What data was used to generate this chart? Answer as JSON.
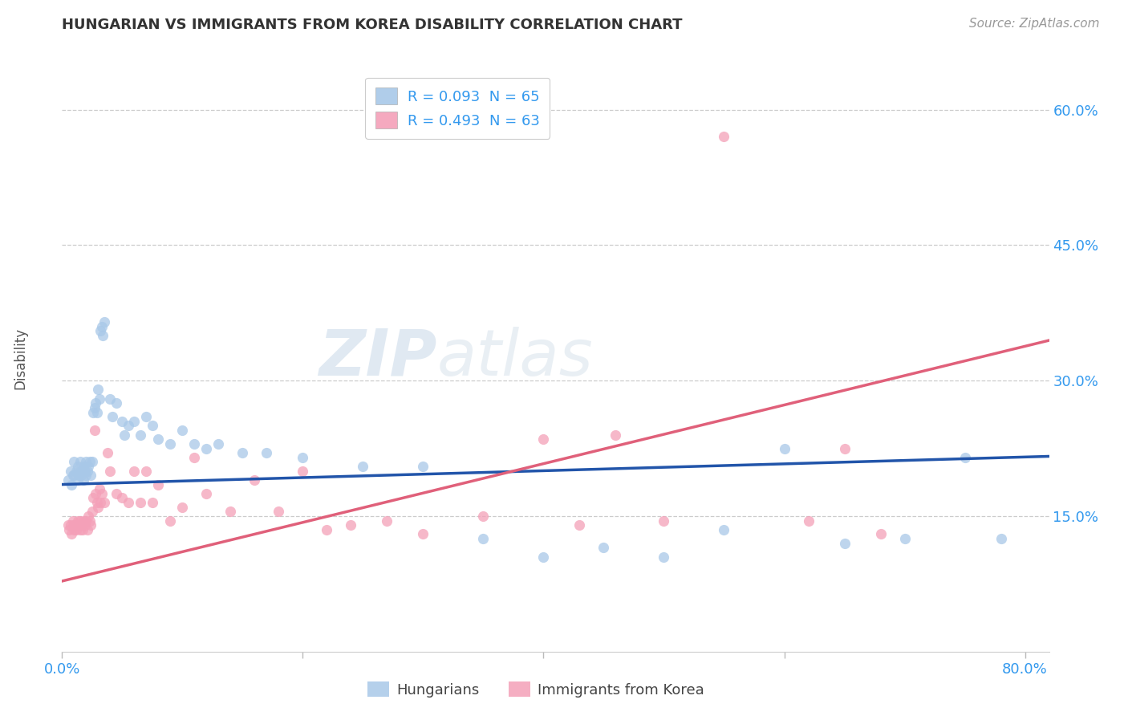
{
  "title": "HUNGARIAN VS IMMIGRANTS FROM KOREA DISABILITY CORRELATION CHART",
  "source": "Source: ZipAtlas.com",
  "ylabel": "Disability",
  "xlim": [
    0.0,
    0.82
  ],
  "ylim": [
    0.0,
    0.65
  ],
  "ytick_vals": [
    0.15,
    0.3,
    0.45,
    0.6
  ],
  "ytick_labels": [
    "15.0%",
    "30.0%",
    "45.0%",
    "60.0%"
  ],
  "xtick_vals": [
    0.0,
    0.2,
    0.4,
    0.6,
    0.8
  ],
  "xtick_labels": [
    "0.0%",
    "",
    "",
    "",
    "80.0%"
  ],
  "legend1_label": "R = 0.093  N = 65",
  "legend2_label": "R = 0.493  N = 63",
  "legend_bottom_label1": "Hungarians",
  "legend_bottom_label2": "Immigrants from Korea",
  "blue_color": "#a8c8e8",
  "pink_color": "#f4a0b8",
  "blue_line_color": "#2255aa",
  "pink_line_color": "#e0607a",
  "watermark_zip": "ZIP",
  "watermark_atlas": "atlas",
  "blue_intercept": 0.185,
  "blue_slope": 0.038,
  "pink_intercept": 0.078,
  "pink_slope": 0.325,
  "blue_x": [
    0.005,
    0.007,
    0.008,
    0.009,
    0.01,
    0.01,
    0.012,
    0.013,
    0.013,
    0.014,
    0.015,
    0.015,
    0.016,
    0.017,
    0.018,
    0.018,
    0.019,
    0.02,
    0.02,
    0.021,
    0.022,
    0.023,
    0.024,
    0.025,
    0.026,
    0.027,
    0.028,
    0.029,
    0.03,
    0.031,
    0.032,
    0.033,
    0.034,
    0.035,
    0.04,
    0.042,
    0.045,
    0.05,
    0.052,
    0.055,
    0.06,
    0.065,
    0.07,
    0.075,
    0.08,
    0.09,
    0.1,
    0.11,
    0.12,
    0.13,
    0.15,
    0.17,
    0.2,
    0.25,
    0.3,
    0.35,
    0.4,
    0.45,
    0.5,
    0.55,
    0.6,
    0.65,
    0.7,
    0.75,
    0.78
  ],
  "blue_y": [
    0.19,
    0.2,
    0.185,
    0.195,
    0.21,
    0.195,
    0.2,
    0.19,
    0.205,
    0.195,
    0.2,
    0.21,
    0.195,
    0.2,
    0.205,
    0.19,
    0.2,
    0.195,
    0.21,
    0.2,
    0.205,
    0.21,
    0.195,
    0.21,
    0.265,
    0.27,
    0.275,
    0.265,
    0.29,
    0.28,
    0.355,
    0.36,
    0.35,
    0.365,
    0.28,
    0.26,
    0.275,
    0.255,
    0.24,
    0.25,
    0.255,
    0.24,
    0.26,
    0.25,
    0.235,
    0.23,
    0.245,
    0.23,
    0.225,
    0.23,
    0.22,
    0.22,
    0.215,
    0.205,
    0.205,
    0.125,
    0.105,
    0.115,
    0.105,
    0.135,
    0.225,
    0.12,
    0.125,
    0.215,
    0.125
  ],
  "pink_x": [
    0.005,
    0.006,
    0.007,
    0.008,
    0.009,
    0.01,
    0.01,
    0.011,
    0.012,
    0.013,
    0.014,
    0.015,
    0.015,
    0.016,
    0.017,
    0.018,
    0.019,
    0.02,
    0.021,
    0.022,
    0.023,
    0.024,
    0.025,
    0.026,
    0.027,
    0.028,
    0.029,
    0.03,
    0.031,
    0.032,
    0.033,
    0.035,
    0.038,
    0.04,
    0.045,
    0.05,
    0.055,
    0.06,
    0.065,
    0.07,
    0.075,
    0.08,
    0.09,
    0.1,
    0.11,
    0.12,
    0.14,
    0.16,
    0.18,
    0.2,
    0.22,
    0.24,
    0.27,
    0.3,
    0.35,
    0.4,
    0.43,
    0.46,
    0.5,
    0.55,
    0.62,
    0.65,
    0.68
  ],
  "pink_y": [
    0.14,
    0.135,
    0.14,
    0.13,
    0.145,
    0.14,
    0.135,
    0.14,
    0.135,
    0.145,
    0.14,
    0.135,
    0.145,
    0.14,
    0.135,
    0.145,
    0.14,
    0.145,
    0.135,
    0.15,
    0.145,
    0.14,
    0.155,
    0.17,
    0.245,
    0.175,
    0.165,
    0.16,
    0.18,
    0.165,
    0.175,
    0.165,
    0.22,
    0.2,
    0.175,
    0.17,
    0.165,
    0.2,
    0.165,
    0.2,
    0.165,
    0.185,
    0.145,
    0.16,
    0.215,
    0.175,
    0.155,
    0.19,
    0.155,
    0.2,
    0.135,
    0.14,
    0.145,
    0.13,
    0.15,
    0.235,
    0.14,
    0.24,
    0.145,
    0.57,
    0.145,
    0.225,
    0.13
  ]
}
